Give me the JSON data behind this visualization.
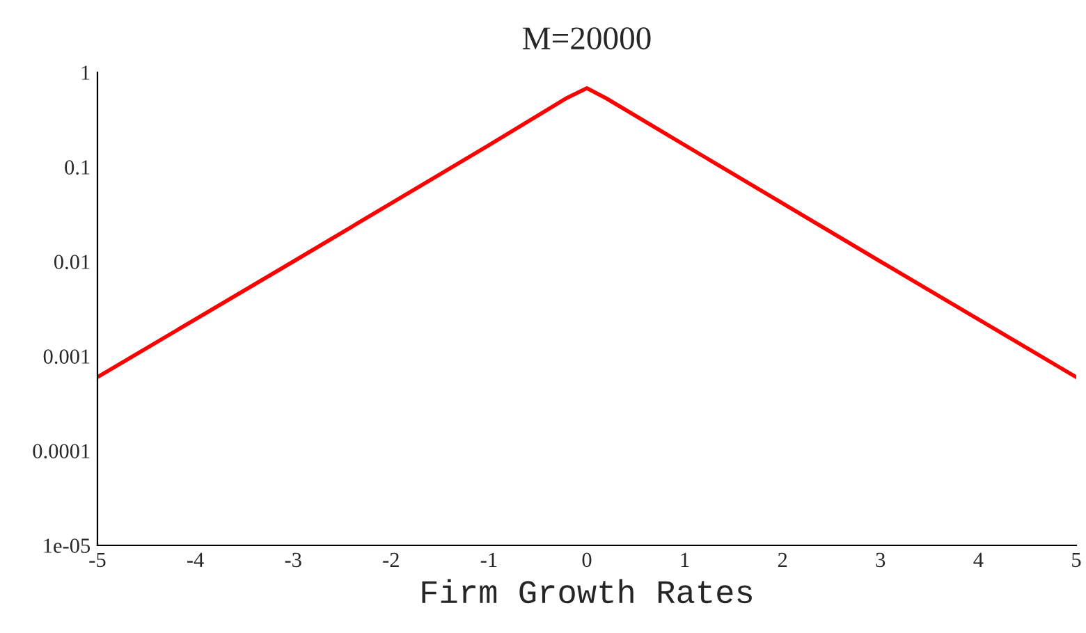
{
  "chart_data": {
    "type": "line",
    "title": "M=20000",
    "xlabel": "Firm Growth Rates",
    "x": [
      -5,
      -3,
      -1,
      -0.2,
      0,
      0.2,
      1,
      3,
      5
    ],
    "series": [
      {
        "color": "#ff0000",
        "values": [
          0.0006,
          0.01,
          0.17,
          0.54,
          0.68,
          0.53,
          0.17,
          0.01,
          0.0006
        ]
      }
    ],
    "log": "y",
    "xlim": [
      -5,
      5
    ],
    "ylim": [
      1e-05,
      1
    ],
    "xticks": [
      -5,
      -4,
      -3,
      -2,
      -1,
      0,
      1,
      2,
      3,
      4,
      5
    ],
    "yticks": [
      1,
      0.1,
      0.01,
      0.001,
      0.0001,
      {
        "value": 1e-05,
        "label": "1e-05"
      }
    ],
    "grid": false,
    "legend": false,
    "marker": "none",
    "line_style": "solid"
  }
}
